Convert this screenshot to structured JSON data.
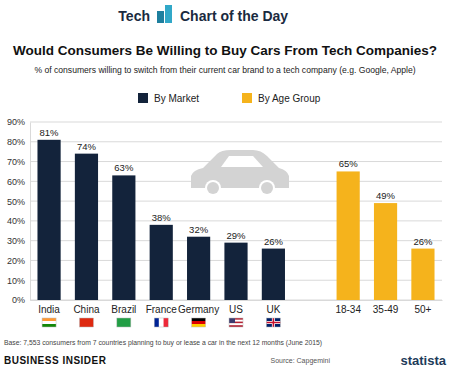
{
  "chart_data": {
    "type": "bar",
    "header": [
      "Tech",
      "Chart of the Day"
    ],
    "title": "Would Consumers Be Willing to Buy Cars From Tech Companies?",
    "subtitle": "% of consumers willing to switch from their current car brand to a tech company (e.g. Google, Apple)",
    "categories": [
      "India",
      "China",
      "Brazil",
      "France",
      "Germany",
      "US",
      "UK",
      null,
      "18-34",
      "35-49",
      "50+"
    ],
    "series": [
      {
        "name": "By Market",
        "color": "#13233b",
        "values": [
          81,
          74,
          63,
          38,
          32,
          29,
          26,
          null,
          null,
          null,
          null
        ],
        "value_labels": [
          "81%",
          "74%",
          "63%",
          "38%",
          "32%",
          "29%",
          "26%",
          null,
          null,
          null,
          null
        ]
      },
      {
        "name": "By Age Group",
        "color": "#f5b31c",
        "values": [
          null,
          null,
          null,
          null,
          null,
          null,
          null,
          null,
          65,
          49,
          26
        ],
        "value_labels": [
          null,
          null,
          null,
          null,
          null,
          null,
          null,
          null,
          "65%",
          "49%",
          "26%"
        ]
      }
    ],
    "ylim": [
      0,
      90
    ],
    "yticks": [
      {
        "value": 0,
        "label": "0%"
      },
      {
        "value": 10,
        "label": "10%"
      },
      {
        "value": 20,
        "label": "20%"
      },
      {
        "value": 30,
        "label": "30%"
      },
      {
        "value": 40,
        "label": "40%"
      },
      {
        "value": 50,
        "label": "50%"
      },
      {
        "value": 60,
        "label": "60%"
      },
      {
        "value": 70,
        "label": "70%"
      },
      {
        "value": 80,
        "label": "80%"
      },
      {
        "value": 90,
        "label": "90%"
      }
    ],
    "grid": true,
    "legend": "top",
    "data_labels": true,
    "note": "Base: 7,553 consumers from 7 countries planning to buy or lease a car in the next 12 months (June 2015)",
    "publisher": "BUSINESS INSIDER",
    "source": "Source: Capgemini",
    "brand": "statista"
  }
}
